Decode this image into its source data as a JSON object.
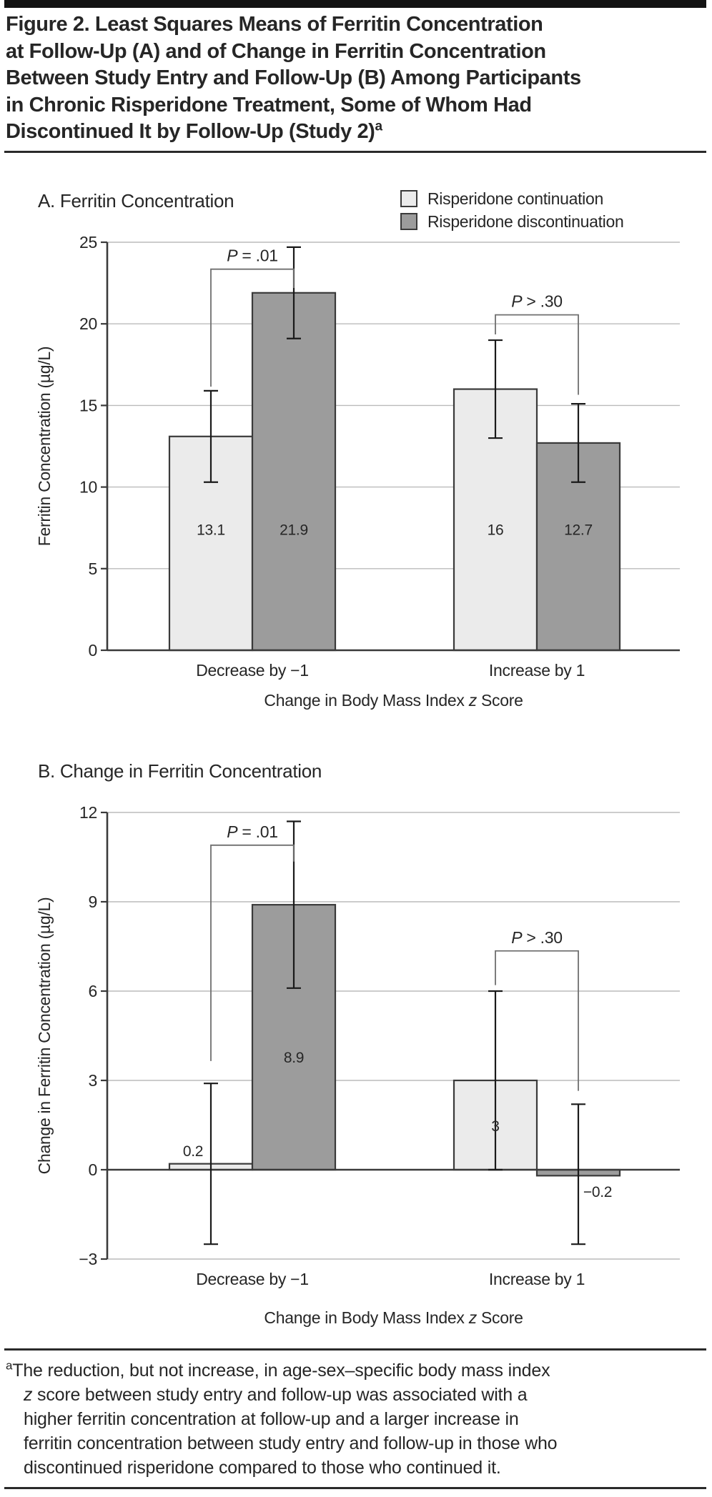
{
  "header": {
    "title_lines": [
      "Figure 2. Least Squares Means of Ferritin Concentration",
      "at Follow-Up (A) and of Change in Ferritin Concentration",
      "Between Study Entry and Follow-Up (B) Among Participants",
      "in Chronic Risperidone Treatment, Some of Whom Had",
      "Discontinued It by Follow-Up (Study 2)"
    ],
    "title_superscript": "a"
  },
  "legend": {
    "items": [
      {
        "label": "Risperidone continuation",
        "color": "#ebebeb"
      },
      {
        "label": "Risperidone discontinuation",
        "color": "#9c9c9c"
      }
    ]
  },
  "colors": {
    "page_bg": "#ffffff",
    "text": "#262626",
    "continuation": "#ebebeb",
    "discontinuation": "#9c9c9c",
    "bar_border": "#3a3a3a",
    "grid": "#bbbbbb",
    "axis": "#3a3a3a",
    "error_bar": "#1a1a1a",
    "bracket": "#6f6f6f",
    "rule": "#2a2a2a",
    "top_bar": "#131313"
  },
  "chart_data": [
    {
      "type": "bar",
      "panel_label": "A. Ferritin Concentration",
      "ylabel": "Ferritin Concentration (µg/L)",
      "xlabel": {
        "prefix": "Change in Body Mass Index ",
        "italic": "z",
        "suffix": " Score"
      },
      "categories": [
        "Decrease by −1",
        "Increase by 1"
      ],
      "ylim": [
        0,
        25
      ],
      "grid": true,
      "legend_position": "top-right",
      "yticks": [
        {
          "value": 0,
          "label": "0"
        },
        {
          "value": 5,
          "label": "5"
        },
        {
          "value": 10,
          "label": "10"
        },
        {
          "value": 15,
          "label": "15"
        },
        {
          "value": 20,
          "label": "20"
        },
        {
          "value": 25,
          "label": "25"
        }
      ],
      "series": [
        {
          "name": "Risperidone continuation",
          "values": [
            13.1,
            16
          ],
          "ci_low": [
            10.3,
            13.0
          ],
          "ci_high": [
            15.9,
            19.0
          ]
        },
        {
          "name": "Risperidone discontinuation",
          "values": [
            21.9,
            12.7
          ],
          "ci_low": [
            19.1,
            10.3
          ],
          "ci_high": [
            24.7,
            15.1
          ]
        }
      ],
      "value_labels": [
        {
          "text": "13.1",
          "series": 0,
          "group": 0,
          "y": 7.4,
          "dx": 0
        },
        {
          "text": "21.9",
          "series": 1,
          "group": 0,
          "y": 7.4,
          "dx": 0
        },
        {
          "text": "16",
          "series": 0,
          "group": 1,
          "y": 7.4,
          "dx": 0
        },
        {
          "text": "12.7",
          "series": 1,
          "group": 1,
          "y": 7.4,
          "dx": 0
        }
      ],
      "brackets": [
        {
          "p_italic": "P",
          "p_rest": " = .01",
          "group": 0,
          "y": 23.35,
          "left_drop": 16.15,
          "right_drop": 22.2
        },
        {
          "p_italic": "P",
          "p_rest": " > .30",
          "group": 1,
          "y": 20.55,
          "left_drop": 19.35,
          "right_drop": 15.65
        }
      ]
    },
    {
      "type": "bar",
      "panel_label": "B. Change in Ferritin Concentration",
      "ylabel": "Change in Ferritin Concentration (µg/L)",
      "xlabel": {
        "prefix": "Change in Body Mass Index ",
        "italic": "z",
        "suffix": " Score"
      },
      "categories": [
        "Decrease by −1",
        "Increase by 1"
      ],
      "ylim": [
        -3,
        12
      ],
      "grid": true,
      "yticks": [
        {
          "value": -3,
          "label": "−3"
        },
        {
          "value": 0,
          "label": "0"
        },
        {
          "value": 3,
          "label": "3"
        },
        {
          "value": 6,
          "label": "6"
        },
        {
          "value": 9,
          "label": "9"
        },
        {
          "value": 12,
          "label": "12"
        }
      ],
      "series": [
        {
          "name": "Risperidone continuation",
          "values": [
            0.2,
            3
          ],
          "ci_low": [
            -2.5,
            0.0
          ],
          "ci_high": [
            2.9,
            6.0
          ]
        },
        {
          "name": "Risperidone discontinuation",
          "values": [
            8.9,
            -0.2
          ],
          "ci_low": [
            6.1,
            -2.5
          ],
          "ci_high": [
            11.7,
            2.2
          ]
        }
      ],
      "value_labels": [
        {
          "text": "0.2",
          "series": 0,
          "group": 0,
          "y": 0.64,
          "dx": -25
        },
        {
          "text": "8.9",
          "series": 1,
          "group": 0,
          "y": 3.78,
          "dx": 0
        },
        {
          "text": "3",
          "series": 0,
          "group": 1,
          "y": 1.48,
          "dx": 0
        },
        {
          "text": "−0.2",
          "series": 1,
          "group": 1,
          "y": -0.73,
          "dx": 27
        }
      ],
      "brackets": [
        {
          "p_italic": "P",
          "p_rest": " = .01",
          "group": 0,
          "y": 10.9,
          "left_drop": 3.65,
          "right_drop": 10.35
        },
        {
          "p_italic": "P",
          "p_rest": " > .30",
          "group": 1,
          "y": 7.35,
          "left_drop": 6.2,
          "right_drop": 2.65
        }
      ]
    }
  ],
  "footnote": {
    "marker": "a",
    "parts": [
      {
        "style": "normal",
        "text": "The reduction, but not increase, in age-sex–specific body mass index\n"
      },
      {
        "style": "italic",
        "text": "z"
      },
      {
        "style": "normal",
        "text": " score between study entry and follow-up was associated with a\nhigher ferritin concentration at follow-up and a larger increase in\nferritin concentration between study entry and follow-up in those who\ndiscontinued risperidone compared to those who continued it."
      }
    ]
  }
}
